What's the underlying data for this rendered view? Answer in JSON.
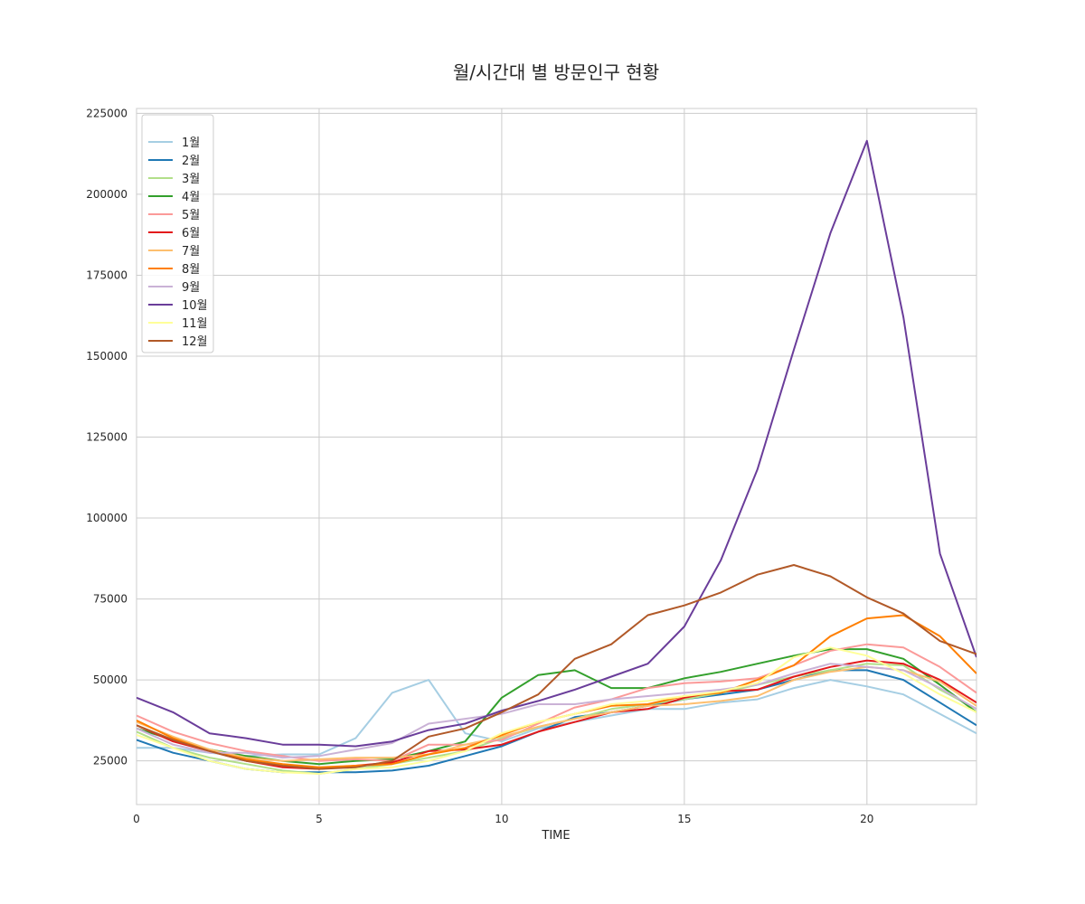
{
  "chart_data": {
    "type": "line",
    "title": "월/시간대 별 방문인구 현황",
    "xlabel": "TIME",
    "ylabel": "",
    "xlim": [
      0,
      23
    ],
    "ylim": [
      11500,
      226500
    ],
    "xticks": [
      0,
      5,
      10,
      15,
      20
    ],
    "yticks": [
      25000,
      50000,
      75000,
      100000,
      125000,
      150000,
      175000,
      200000,
      225000
    ],
    "grid": true,
    "legend_position": "upper-left",
    "x": [
      0,
      1,
      2,
      3,
      4,
      5,
      6,
      7,
      8,
      9,
      10,
      11,
      12,
      13,
      14,
      15,
      16,
      17,
      18,
      19,
      20,
      21,
      22,
      23
    ],
    "series": [
      {
        "name": "1월",
        "color": "#a6cee3",
        "values": [
          29000,
          29000,
          27500,
          26500,
          27000,
          27000,
          32000,
          46000,
          50000,
          33500,
          31000,
          35000,
          37000,
          39000,
          41000,
          41000,
          43000,
          44000,
          47500,
          50000,
          48000,
          45500,
          39500,
          33500
        ]
      },
      {
        "name": "2월",
        "color": "#1f78b4",
        "values": [
          31500,
          27500,
          25000,
          22500,
          21500,
          21500,
          21500,
          22000,
          23500,
          26500,
          29500,
          34000,
          38500,
          40000,
          42000,
          44000,
          45500,
          47000,
          50000,
          53000,
          53000,
          50000,
          43000,
          36000
        ]
      },
      {
        "name": "3월",
        "color": "#b2df8a",
        "values": [
          34000,
          29000,
          26000,
          24000,
          22000,
          21000,
          22500,
          24000,
          26000,
          28000,
          32000,
          35500,
          38000,
          41000,
          42500,
          44000,
          46000,
          48500,
          51000,
          53000,
          55000,
          54500,
          47000,
          41000
        ]
      },
      {
        "name": "4월",
        "color": "#33a02c",
        "values": [
          35000,
          31500,
          28500,
          26500,
          25000,
          24000,
          25000,
          25500,
          28000,
          31000,
          44500,
          51500,
          53000,
          47500,
          47500,
          50500,
          52500,
          55000,
          57500,
          59500,
          59500,
          56500,
          48500,
          40000
        ]
      },
      {
        "name": "5월",
        "color": "#fb9a99",
        "values": [
          39000,
          34000,
          30500,
          28000,
          26500,
          25000,
          25500,
          25000,
          30000,
          30000,
          31500,
          36500,
          41500,
          44000,
          47500,
          49000,
          49500,
          50500,
          54500,
          59000,
          61000,
          60000,
          54000,
          46000
        ]
      },
      {
        "name": "6월",
        "color": "#e31a1c",
        "values": [
          36000,
          31000,
          28000,
          25000,
          23000,
          22500,
          23500,
          24500,
          28000,
          28500,
          30000,
          34000,
          37000,
          40000,
          41000,
          44500,
          46500,
          47000,
          51000,
          54000,
          56000,
          55000,
          50000,
          43000
        ]
      },
      {
        "name": "7월",
        "color": "#fdbf6f",
        "values": [
          37000,
          32500,
          28500,
          26000,
          25000,
          25500,
          26000,
          26000,
          27000,
          30000,
          32500,
          35500,
          38000,
          40000,
          42000,
          42500,
          43500,
          45000,
          50000,
          52500,
          54000,
          53000,
          49500,
          42000
        ]
      },
      {
        "name": "8월",
        "color": "#ff7f00",
        "values": [
          37500,
          32000,
          28000,
          25500,
          24000,
          23000,
          23500,
          24000,
          27000,
          29000,
          33000,
          37000,
          39500,
          42000,
          42500,
          45000,
          46000,
          50000,
          54500,
          63500,
          69000,
          70000,
          63500,
          52000
        ]
      },
      {
        "name": "9월",
        "color": "#cab2d6",
        "values": [
          35000,
          30000,
          27500,
          27500,
          26000,
          26500,
          28500,
          30500,
          36500,
          38000,
          39500,
          42500,
          42500,
          44000,
          45000,
          46000,
          47000,
          48500,
          52000,
          55000,
          54000,
          53000,
          47500,
          41000
        ]
      },
      {
        "name": "10월",
        "color": "#6a3d9a",
        "values": [
          44500,
          40000,
          33500,
          32000,
          30000,
          30000,
          29500,
          31000,
          34500,
          36500,
          40500,
          43500,
          47000,
          51000,
          55000,
          66500,
          87000,
          115000,
          152000,
          188000,
          216500,
          162000,
          89000,
          57000
        ]
      },
      {
        "name": "11월",
        "color": "#ffff99",
        "values": [
          33000,
          29000,
          25000,
          22500,
          21500,
          21000,
          22500,
          23000,
          25000,
          28000,
          33500,
          37000,
          39500,
          42500,
          43500,
          45000,
          46500,
          49000,
          57000,
          60000,
          57500,
          52000,
          45500,
          40000
        ]
      },
      {
        "name": "12월",
        "color": "#b15928",
        "values": [
          36000,
          31500,
          28000,
          25000,
          23500,
          22500,
          23000,
          25000,
          32500,
          35000,
          40000,
          45500,
          56500,
          61000,
          70000,
          73000,
          77000,
          82500,
          85500,
          82000,
          75500,
          70500,
          62000,
          58000
        ]
      }
    ]
  }
}
